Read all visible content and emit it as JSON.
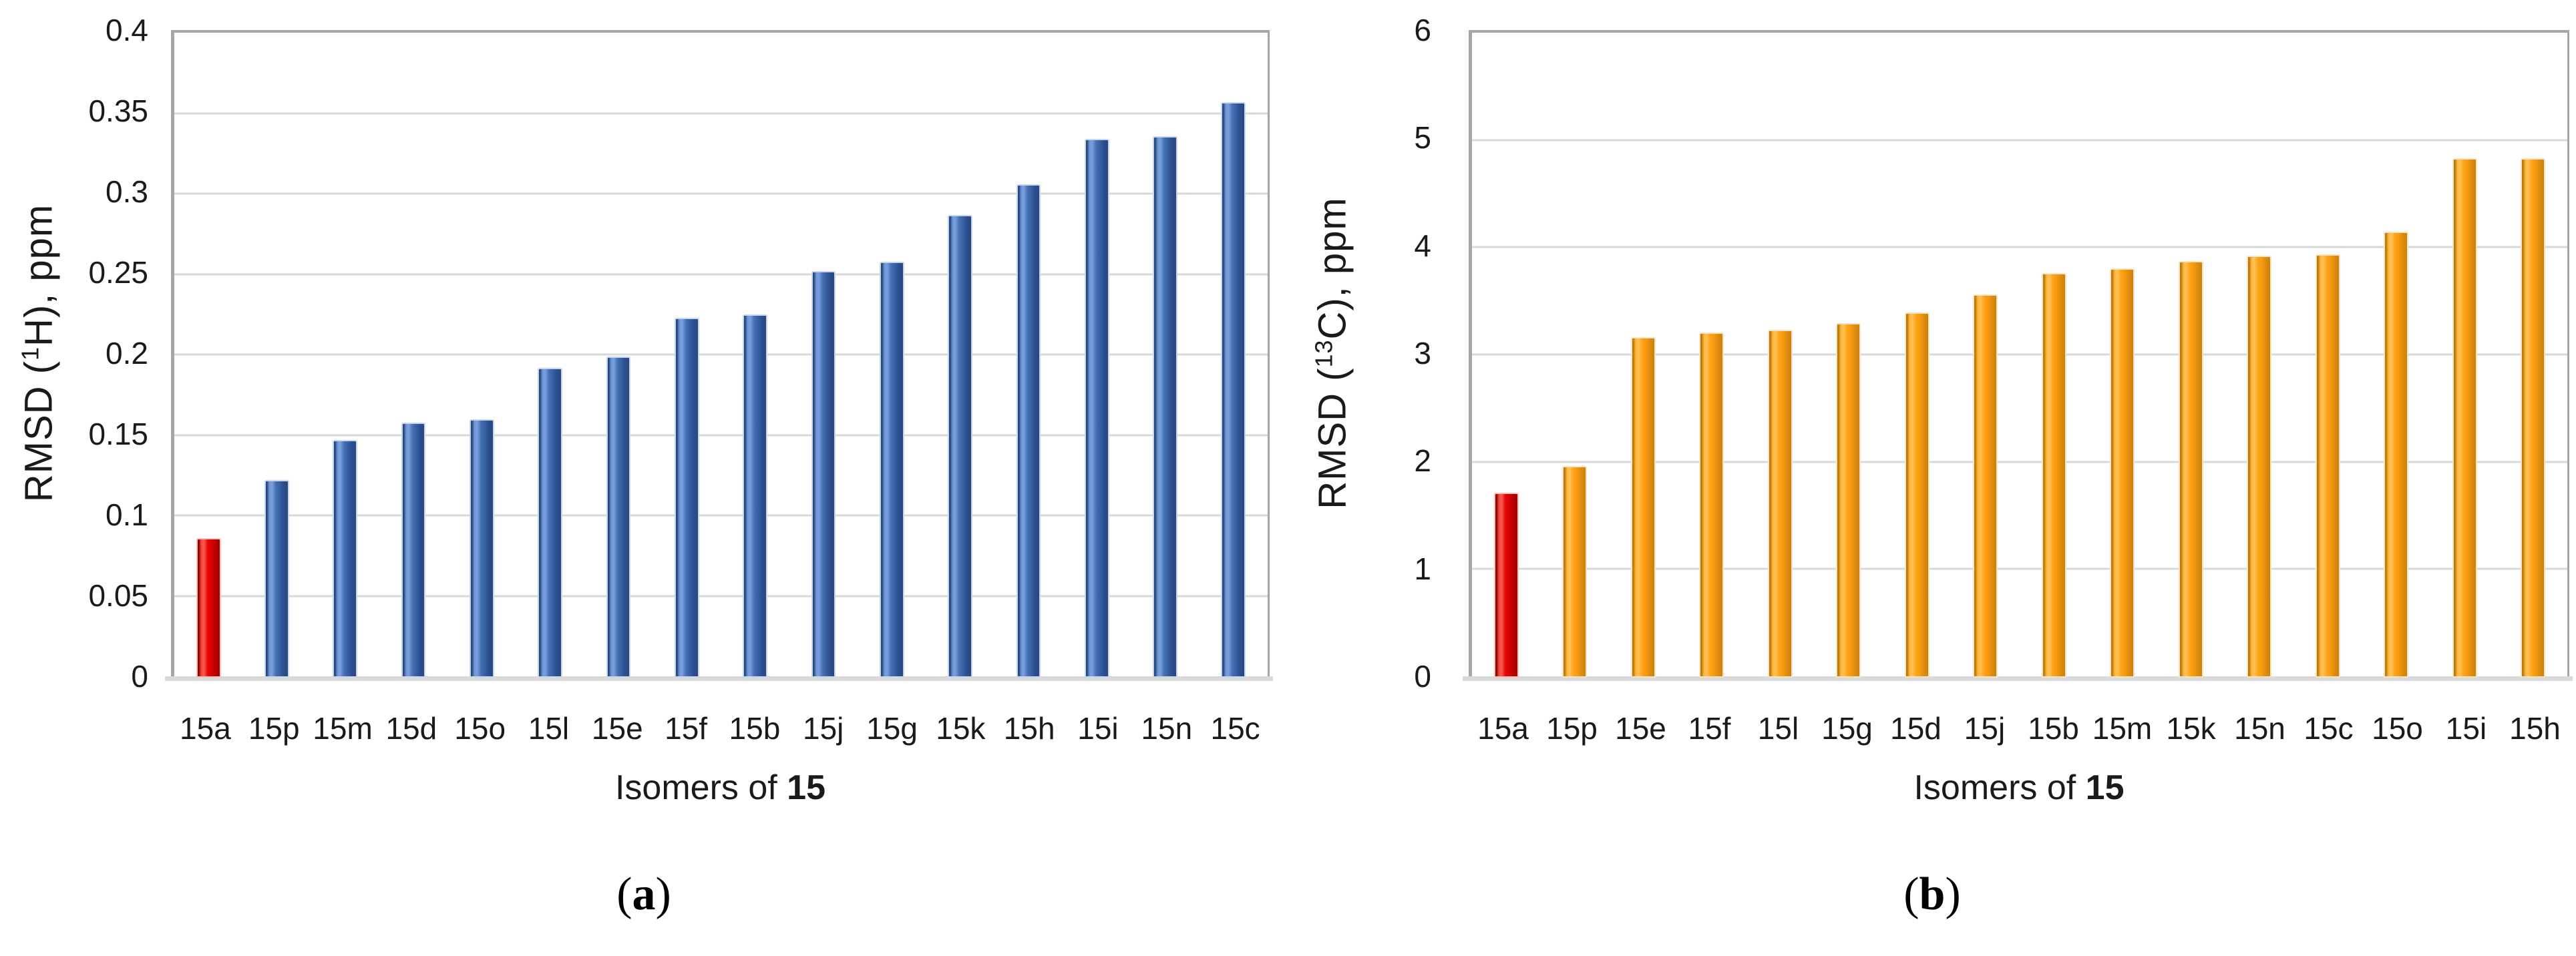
{
  "figure": {
    "background": "#ffffff",
    "grid_color": "#D9D9D9",
    "axis_color": "#A6A6A6",
    "panels": [
      "a",
      "b"
    ]
  },
  "chart_data": [
    {
      "type": "bar",
      "panel": "a",
      "title": "",
      "y_axis_title": {
        "prefix": "RMSD (",
        "isotope": "1",
        "suffix": "H), ppm"
      },
      "x_axis_title": {
        "prefix": "Isomers of ",
        "bold": "15"
      },
      "caption": {
        "open": "(",
        "letter": "a",
        "close": ")"
      },
      "categories": [
        "15a",
        "15p",
        "15m",
        "15d",
        "15o",
        "15l",
        "15e",
        "15f",
        "15b",
        "15j",
        "15g",
        "15k",
        "15h",
        "15i",
        "15n",
        "15c"
      ],
      "values": [
        0.085,
        0.121,
        0.146,
        0.157,
        0.159,
        0.191,
        0.198,
        0.222,
        0.224,
        0.251,
        0.257,
        0.286,
        0.305,
        0.333,
        0.335,
        0.356
      ],
      "ylim": [
        0,
        0.4
      ],
      "yticks": [
        "0",
        "0.05",
        "0.1",
        "0.15",
        "0.2",
        "0.25",
        "0.3",
        "0.35",
        "0.4"
      ],
      "grid": "horizontal",
      "legend": "none",
      "bar_color": "#3E68AE",
      "highlight_color": "#E60505",
      "highlight_index": 0,
      "bar_style": "bar-blue",
      "highlight_style": "bar-red"
    },
    {
      "type": "bar",
      "panel": "b",
      "title": "",
      "y_axis_title": {
        "prefix": "RMSD (",
        "isotope": "13",
        "suffix": "C), ppm"
      },
      "x_axis_title": {
        "prefix": "Isomers of ",
        "bold": "15"
      },
      "caption": {
        "open": "(",
        "letter": "b",
        "close": ")"
      },
      "categories": [
        "15a",
        "15p",
        "15e",
        "15f",
        "15l",
        "15g",
        "15d",
        "15j",
        "15b",
        "15m",
        "15k",
        "15n",
        "15c",
        "15o",
        "15i",
        "15h"
      ],
      "values": [
        1.7,
        1.95,
        3.15,
        3.19,
        3.22,
        3.28,
        3.38,
        3.55,
        3.75,
        3.79,
        3.86,
        3.91,
        3.92,
        4.13,
        4.82,
        4.82
      ],
      "ylim": [
        0,
        6
      ],
      "yticks": [
        "0",
        "1",
        "2",
        "3",
        "4",
        "5",
        "6"
      ],
      "grid": "horizontal",
      "legend": "none",
      "bar_color": "#FFA215",
      "highlight_color": "#E60505",
      "highlight_index": 0,
      "bar_style": "bar-orange",
      "highlight_style": "bar-red"
    }
  ]
}
